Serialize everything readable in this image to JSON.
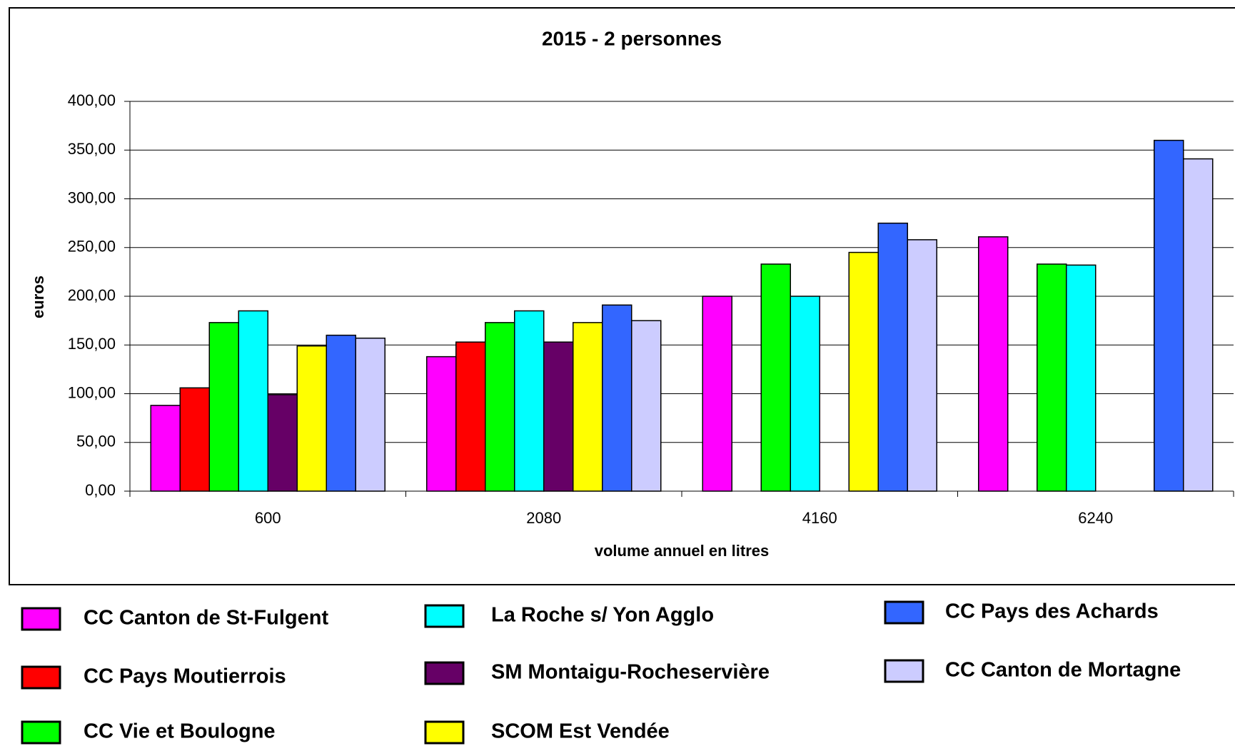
{
  "chart_data": {
    "type": "bar",
    "title": "2015 - 2 personnes",
    "y_label": "euros",
    "x_label": "volume annuel en litres",
    "categories": [
      "600",
      "2080",
      "4160",
      "6240"
    ],
    "series": [
      {
        "name": "CC Canton de St-Fulgent",
        "color": "#ff00ff",
        "values": [
          88,
          138,
          200,
          261
        ]
      },
      {
        "name": "CC Pays Moutierrois",
        "color": "#ff0000",
        "values": [
          106,
          153,
          null,
          null
        ]
      },
      {
        "name": "CC Vie et Boulogne",
        "color": "#00ff00",
        "values": [
          173,
          173,
          233,
          233
        ]
      },
      {
        "name": "La Roche s/ Yon Agglo",
        "color": "#00ffff",
        "values": [
          185,
          185,
          200,
          232
        ]
      },
      {
        "name": "SM Montaigu-Rocheservière",
        "color": "#660066",
        "values": [
          99,
          153,
          null,
          null
        ]
      },
      {
        "name": "SCOM Est Vendée",
        "color": "#ffff00",
        "values": [
          149,
          173,
          245,
          null
        ]
      },
      {
        "name": "CC Pays des Achards",
        "color": "#3366ff",
        "values": [
          160,
          191,
          275,
          360
        ]
      },
      {
        "name": "CC Canton de Mortagne",
        "color": "#ccccff",
        "values": [
          157,
          175,
          258,
          341
        ]
      }
    ],
    "ylim": [
      0,
      400
    ],
    "yticks": [
      {
        "value": 0,
        "label": "0,00"
      },
      {
        "value": 50,
        "label": "50,00"
      },
      {
        "value": 100,
        "label": "100,00"
      },
      {
        "value": 150,
        "label": "150,00"
      },
      {
        "value": 200,
        "label": "200,00"
      },
      {
        "value": 250,
        "label": "250,00"
      },
      {
        "value": 300,
        "label": "300,00"
      },
      {
        "value": 350,
        "label": "350,00"
      },
      {
        "value": 400,
        "label": "400,00"
      }
    ],
    "grid": true
  }
}
